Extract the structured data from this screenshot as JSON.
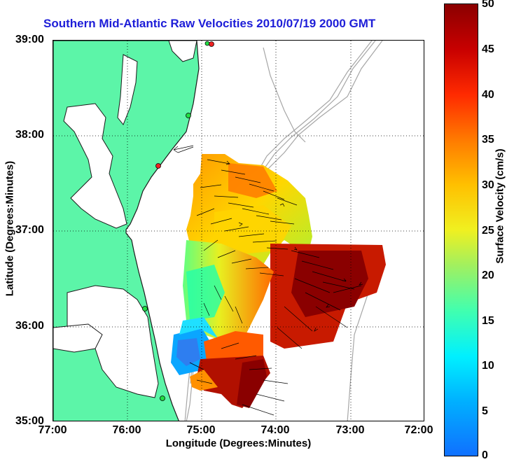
{
  "title": "Southern Mid-Atlantic Raw Velocities 2010/07/19 2000 GMT",
  "axes": {
    "xlabel": "Longitude (Degrees:Minutes)",
    "ylabel": "Latitude (Degrees:Minutes)",
    "x_ticks": [
      "77:00",
      "76:00",
      "75:00",
      "74:00",
      "73:00",
      "72:00"
    ],
    "y_ticks": [
      "39:00",
      "38:00",
      "37:00",
      "36:00",
      "35:00"
    ]
  },
  "colorbar": {
    "label": "Surface Velocity (cm/s)",
    "ticks": [
      "50",
      "45",
      "40",
      "35",
      "30",
      "25",
      "20",
      "15",
      "10",
      "5",
      "0"
    ]
  },
  "colors": {
    "title": "#1d1dd8",
    "land": "#5cf5a8",
    "coastline": "#1a1a1a",
    "bathymetry": "#a0a0a0",
    "grid": "#000000",
    "station_green": "#22dd44",
    "station_red": "#ee2222"
  }
}
